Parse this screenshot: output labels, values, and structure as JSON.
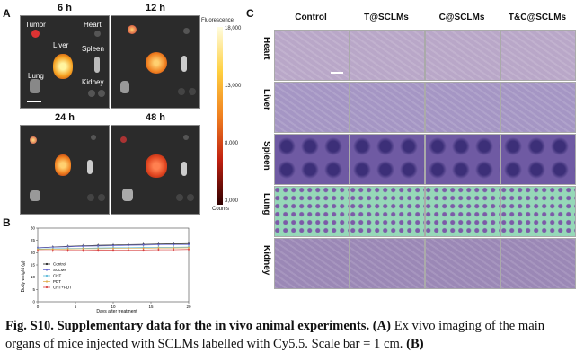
{
  "panel_a": {
    "letter": "A",
    "tiles": [
      {
        "title": "6 h"
      },
      {
        "title": "12 h"
      },
      {
        "title": "24 h"
      },
      {
        "title": "48 h"
      }
    ],
    "organs": {
      "tumor": "Tumor",
      "heart": "Heart",
      "liver": "Liver",
      "spleen": "Spleen",
      "lung": "Lung",
      "kidney": "Kidney"
    },
    "colorbar": {
      "title": "Fluorescence",
      "ticks": [
        "18,000",
        "13,000",
        "8,000",
        "3,000"
      ],
      "unit": "Counts"
    }
  },
  "panel_b": {
    "letter": "B",
    "chart_data": {
      "type": "line",
      "xlabel": "Days after treatment",
      "ylabel": "Body weight (g)",
      "ylim": [
        0,
        30
      ],
      "xlim": [
        0,
        20
      ],
      "yticks": [
        "0",
        "5",
        "10",
        "15",
        "20",
        "25",
        "30"
      ],
      "xticks": [
        "0",
        "5",
        "10",
        "15",
        "20"
      ],
      "x": [
        0,
        2,
        4,
        6,
        8,
        10,
        12,
        14,
        16,
        18,
        20
      ],
      "series": [
        {
          "name": "Control",
          "color": "#222222",
          "values": [
            22,
            22.3,
            22.6,
            22.8,
            23,
            23.1,
            23.3,
            23.4,
            23.5,
            23.6,
            23.7
          ]
        },
        {
          "name": "SCLMs",
          "color": "#6a6ad0",
          "values": [
            22,
            22.2,
            22.4,
            22.6,
            22.7,
            22.8,
            23,
            23.1,
            23.2,
            23.2,
            23.3
          ]
        },
        {
          "name": "CHT",
          "color": "#59b8d8",
          "values": [
            21.5,
            21.6,
            21.7,
            21.8,
            21.9,
            22,
            22,
            22.1,
            22.2,
            22.2,
            22.3
          ]
        },
        {
          "name": "PDT",
          "color": "#e0b050",
          "values": [
            21.3,
            21.4,
            21.5,
            21.6,
            21.6,
            21.7,
            21.8,
            21.8,
            21.9,
            21.9,
            22
          ]
        },
        {
          "name": "CHT+PDT",
          "color": "#d84040",
          "values": [
            20.8,
            20.8,
            20.9,
            20.9,
            21,
            21,
            21.1,
            21.1,
            21.2,
            21.2,
            21.3
          ]
        }
      ],
      "legend_position": "bottom-left"
    }
  },
  "panel_c": {
    "letter": "C",
    "columns": [
      "Control",
      "T@SCLMs",
      "C@SCLMs",
      "T&C@SCLMs"
    ],
    "rows": [
      "Heart",
      "Liver",
      "Spleen",
      "Lung",
      "Kidney"
    ]
  },
  "caption": {
    "bold_part": "Fig. S10. Supplementary data for the in vivo animal experiments.",
    "a_label": "(A)",
    "a_text": " Ex vivo imaging of the main organs of mice injected with SCLMs labelled with Cy5.5. Scale bar = 1 cm. ",
    "b_label": "(B)"
  },
  "colors": {
    "tile_bg": "#2b2b2b",
    "heart_tissue": "#b9a7c8",
    "liver_tissue": "#a596c4",
    "spleen_tissue": "#6f5aa3",
    "lung_tissue": "#96d8b8",
    "kidney_tissue": "#9b88b6"
  }
}
